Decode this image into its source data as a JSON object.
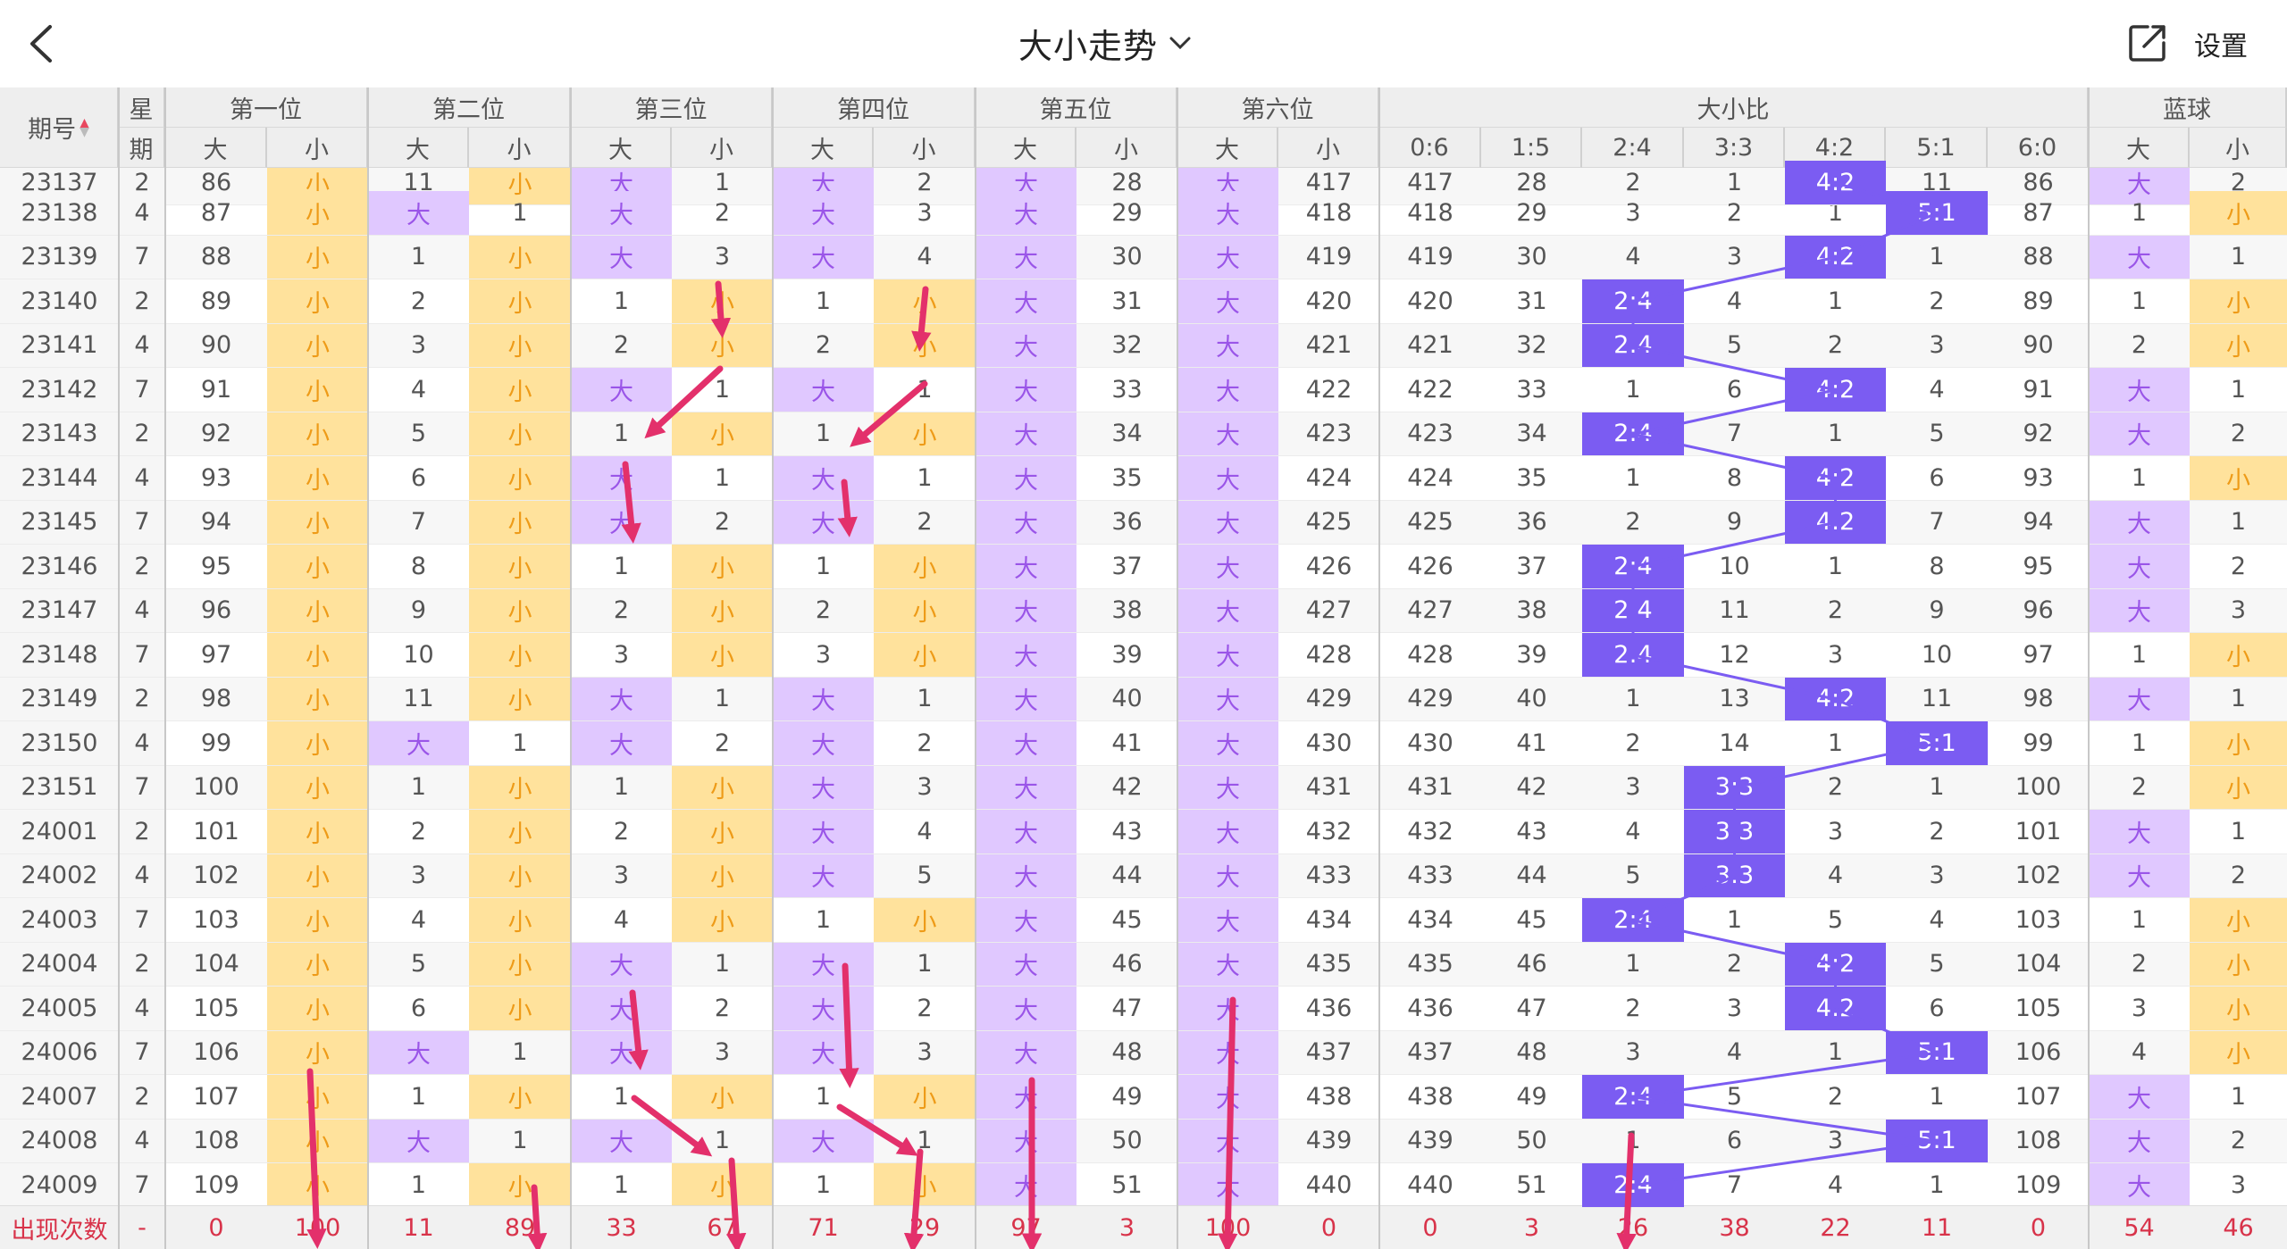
{
  "header": {
    "title": "大小走势",
    "settings_label": "设置"
  },
  "icons": {
    "back": "chevron-left-icon",
    "title_dropdown": "chevron-down-icon",
    "share": "share-external-icon"
  },
  "colors": {
    "big": "#e0c8ff",
    "big_text": "#9a55e8",
    "small": "#ffe29c",
    "small_text": "#ee9b18",
    "ratio": "#7b5cf2",
    "count_text": "#d8334a",
    "arrow": "#e3306b"
  },
  "table": {
    "col_issue": "期号",
    "col_weekday": [
      "星",
      "期"
    ],
    "positions": [
      "第一位",
      "第二位",
      "第三位",
      "第四位",
      "第五位",
      "第六位"
    ],
    "big_label": "大",
    "small_label": "小",
    "ratio_group": "大小比",
    "ratio_labels": [
      "0:6",
      "1:5",
      "2:4",
      "3:3",
      "4:2",
      "5:1",
      "6:0"
    ],
    "blue_group": "蓝球",
    "partial_row": [
      "23137",
      "2",
      "86",
      "小",
      "11",
      "小",
      "大",
      "1",
      "大",
      "2",
      "大",
      "28",
      "大",
      "417",
      "417",
      "28",
      "2",
      "1",
      "4:2",
      "11",
      "86",
      "大",
      "2"
    ],
    "rows": [
      [
        "23138",
        "4",
        "87",
        "小",
        "大",
        "1",
        "大",
        "2",
        "大",
        "3",
        "大",
        "29",
        "大",
        "418",
        "418",
        "29",
        "3",
        "2",
        "1",
        "5:1",
        "87",
        "1",
        "小"
      ],
      [
        "23139",
        "7",
        "88",
        "小",
        "1",
        "小",
        "大",
        "3",
        "大",
        "4",
        "大",
        "30",
        "大",
        "419",
        "419",
        "30",
        "4",
        "3",
        "4:2",
        "1",
        "88",
        "大",
        "1"
      ],
      [
        "23140",
        "2",
        "89",
        "小",
        "2",
        "小",
        "1",
        "小",
        "1",
        "小",
        "大",
        "31",
        "大",
        "420",
        "420",
        "31",
        "2:4",
        "4",
        "1",
        "2",
        "89",
        "1",
        "小"
      ],
      [
        "23141",
        "4",
        "90",
        "小",
        "3",
        "小",
        "2",
        "小",
        "2",
        "小",
        "大",
        "32",
        "大",
        "421",
        "421",
        "32",
        "2:4",
        "5",
        "2",
        "3",
        "90",
        "2",
        "小"
      ],
      [
        "23142",
        "7",
        "91",
        "小",
        "4",
        "小",
        "大",
        "1",
        "大",
        "1",
        "大",
        "33",
        "大",
        "422",
        "422",
        "33",
        "1",
        "6",
        "4:2",
        "4",
        "91",
        "大",
        "1"
      ],
      [
        "23143",
        "2",
        "92",
        "小",
        "5",
        "小",
        "1",
        "小",
        "1",
        "小",
        "大",
        "34",
        "大",
        "423",
        "423",
        "34",
        "2:4",
        "7",
        "1",
        "5",
        "92",
        "大",
        "2"
      ],
      [
        "23144",
        "4",
        "93",
        "小",
        "6",
        "小",
        "大",
        "1",
        "大",
        "1",
        "大",
        "35",
        "大",
        "424",
        "424",
        "35",
        "1",
        "8",
        "4:2",
        "6",
        "93",
        "1",
        "小"
      ],
      [
        "23145",
        "7",
        "94",
        "小",
        "7",
        "小",
        "大",
        "2",
        "大",
        "2",
        "大",
        "36",
        "大",
        "425",
        "425",
        "36",
        "2",
        "9",
        "4:2",
        "7",
        "94",
        "大",
        "1"
      ],
      [
        "23146",
        "2",
        "95",
        "小",
        "8",
        "小",
        "1",
        "小",
        "1",
        "小",
        "大",
        "37",
        "大",
        "426",
        "426",
        "37",
        "2:4",
        "10",
        "1",
        "8",
        "95",
        "大",
        "2"
      ],
      [
        "23147",
        "4",
        "96",
        "小",
        "9",
        "小",
        "2",
        "小",
        "2",
        "小",
        "大",
        "38",
        "大",
        "427",
        "427",
        "38",
        "2:4",
        "11",
        "2",
        "9",
        "96",
        "大",
        "3"
      ],
      [
        "23148",
        "7",
        "97",
        "小",
        "10",
        "小",
        "3",
        "小",
        "3",
        "小",
        "大",
        "39",
        "大",
        "428",
        "428",
        "39",
        "2:4",
        "12",
        "3",
        "10",
        "97",
        "1",
        "小"
      ],
      [
        "23149",
        "2",
        "98",
        "小",
        "11",
        "小",
        "大",
        "1",
        "大",
        "1",
        "大",
        "40",
        "大",
        "429",
        "429",
        "40",
        "1",
        "13",
        "4:2",
        "11",
        "98",
        "大",
        "1"
      ],
      [
        "23150",
        "4",
        "99",
        "小",
        "大",
        "1",
        "大",
        "2",
        "大",
        "2",
        "大",
        "41",
        "大",
        "430",
        "430",
        "41",
        "2",
        "14",
        "1",
        "5:1",
        "99",
        "1",
        "小"
      ],
      [
        "23151",
        "7",
        "100",
        "小",
        "1",
        "小",
        "1",
        "小",
        "大",
        "3",
        "大",
        "42",
        "大",
        "431",
        "431",
        "42",
        "3",
        "3:3",
        "2",
        "1",
        "100",
        "2",
        "小"
      ],
      [
        "24001",
        "2",
        "101",
        "小",
        "2",
        "小",
        "2",
        "小",
        "大",
        "4",
        "大",
        "43",
        "大",
        "432",
        "432",
        "43",
        "4",
        "3:3",
        "3",
        "2",
        "101",
        "大",
        "1"
      ],
      [
        "24002",
        "4",
        "102",
        "小",
        "3",
        "小",
        "3",
        "小",
        "大",
        "5",
        "大",
        "44",
        "大",
        "433",
        "433",
        "44",
        "5",
        "3:3",
        "4",
        "3",
        "102",
        "大",
        "2"
      ],
      [
        "24003",
        "7",
        "103",
        "小",
        "4",
        "小",
        "4",
        "小",
        "1",
        "小",
        "大",
        "45",
        "大",
        "434",
        "434",
        "45",
        "2:4",
        "1",
        "5",
        "4",
        "103",
        "1",
        "小"
      ],
      [
        "24004",
        "2",
        "104",
        "小",
        "5",
        "小",
        "大",
        "1",
        "大",
        "1",
        "大",
        "46",
        "大",
        "435",
        "435",
        "46",
        "1",
        "2",
        "4:2",
        "5",
        "104",
        "2",
        "小"
      ],
      [
        "24005",
        "4",
        "105",
        "小",
        "6",
        "小",
        "大",
        "2",
        "大",
        "2",
        "大",
        "47",
        "大",
        "436",
        "436",
        "47",
        "2",
        "3",
        "4:2",
        "6",
        "105",
        "3",
        "小"
      ],
      [
        "24006",
        "7",
        "106",
        "小",
        "大",
        "1",
        "大",
        "3",
        "大",
        "3",
        "大",
        "48",
        "大",
        "437",
        "437",
        "48",
        "3",
        "4",
        "1",
        "5:1",
        "106",
        "4",
        "小"
      ],
      [
        "24007",
        "2",
        "107",
        "小",
        "1",
        "小",
        "1",
        "小",
        "1",
        "小",
        "大",
        "49",
        "大",
        "438",
        "438",
        "49",
        "2:4",
        "5",
        "2",
        "1",
        "107",
        "大",
        "1"
      ],
      [
        "24008",
        "4",
        "108",
        "小",
        "大",
        "1",
        "大",
        "1",
        "大",
        "1",
        "大",
        "50",
        "大",
        "439",
        "439",
        "50",
        "1",
        "6",
        "3",
        "5:1",
        "108",
        "大",
        "2"
      ],
      [
        "24009",
        "7",
        "109",
        "小",
        "1",
        "小",
        "1",
        "小",
        "1",
        "小",
        "大",
        "51",
        "大",
        "440",
        "440",
        "51",
        "2:4",
        "7",
        "4",
        "1",
        "109",
        "大",
        "3"
      ]
    ],
    "footer": [
      "出现次数",
      "-",
      "0",
      "100",
      "11",
      "89",
      "33",
      "67",
      "71",
      "29",
      "97",
      "3",
      "100",
      "0",
      "0",
      "3",
      "26",
      "38",
      "22",
      "11",
      "0",
      "54",
      "46"
    ]
  }
}
